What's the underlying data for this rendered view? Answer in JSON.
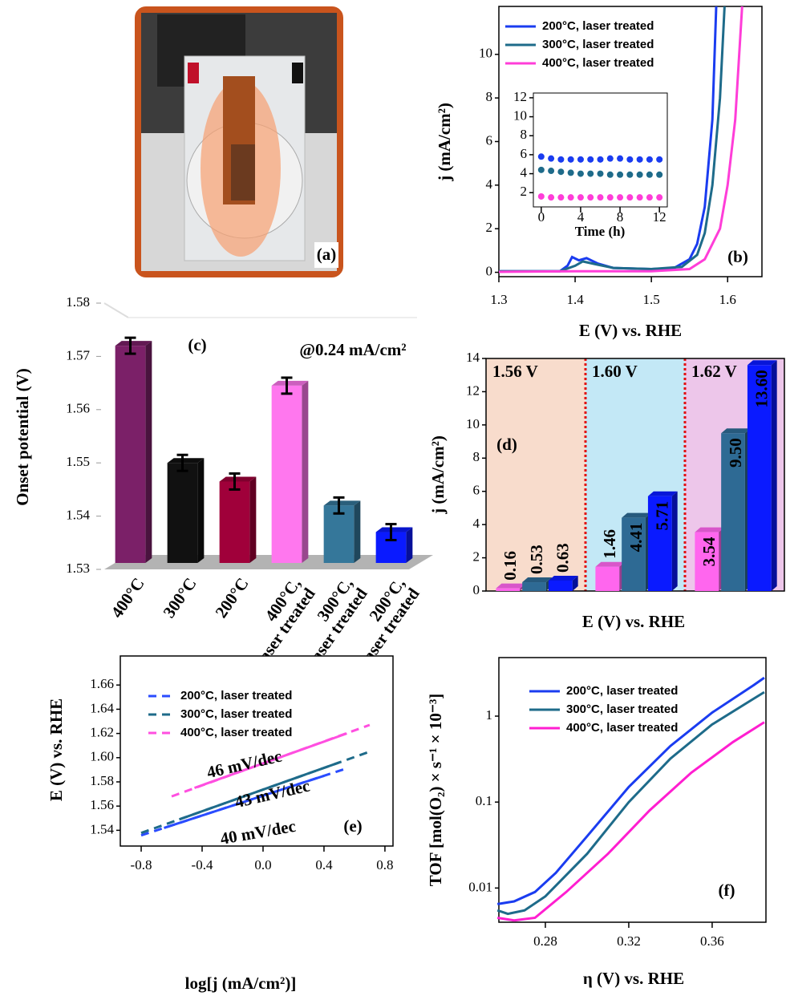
{
  "chart_data": [
    {
      "type": "photo",
      "panel_label": "(a)"
    },
    {
      "type": "line",
      "panel_label": "(b)",
      "xlabel": "E (V) vs. RHE",
      "ylabel": "j (mA/cm²)",
      "xlim": [
        1.3,
        1.645
      ],
      "xticks": [
        1.3,
        1.4,
        1.5,
        1.6
      ],
      "ylim": [
        -0.2,
        12.2
      ],
      "yticks": [
        0,
        2,
        4,
        6,
        8,
        10
      ],
      "legend": "upper left",
      "series": [
        {
          "name": "200°C, laser treated",
          "color": "#1a3cf0",
          "x": [
            1.3,
            1.38,
            1.39,
            1.396,
            1.405,
            1.415,
            1.43,
            1.45,
            1.5,
            1.53,
            1.55,
            1.56,
            1.57,
            1.58,
            1.585
          ],
          "values": [
            0.05,
            0.05,
            0.3,
            0.7,
            0.55,
            0.65,
            0.4,
            0.2,
            0.15,
            0.2,
            0.6,
            1.3,
            3,
            7,
            12.2
          ]
        },
        {
          "name": "300°C, laser treated",
          "color": "#1e6b8a",
          "x": [
            1.3,
            1.38,
            1.4,
            1.41,
            1.43,
            1.45,
            1.5,
            1.54,
            1.56,
            1.57,
            1.58,
            1.59,
            1.596
          ],
          "values": [
            0.05,
            0.05,
            0.3,
            0.5,
            0.35,
            0.2,
            0.15,
            0.25,
            0.8,
            1.8,
            4,
            8,
            12.2
          ]
        },
        {
          "name": "400°C, laser treated",
          "color": "#ff3dd8",
          "x": [
            1.3,
            1.4,
            1.45,
            1.5,
            1.55,
            1.57,
            1.59,
            1.6,
            1.61,
            1.619
          ],
          "values": [
            0.02,
            0.05,
            0.05,
            0.05,
            0.15,
            0.6,
            2,
            4,
            7,
            12.2
          ]
        }
      ],
      "inset": {
        "type": "scatter",
        "xlabel": "Time (h)",
        "xlim": [
          -0.8,
          12.8
        ],
        "xticks": [
          0,
          4,
          8,
          12
        ],
        "ylim": [
          0.5,
          12.5
        ],
        "yticks": [
          2,
          4,
          6,
          8,
          10,
          12
        ],
        "series": [
          {
            "color": "#1a3cf0",
            "x": [
              0,
              1,
              2,
              3,
              4,
              5,
              6,
              7,
              8,
              9,
              10,
              11,
              12
            ],
            "values": [
              5.8,
              5.6,
              5.5,
              5.5,
              5.5,
              5.5,
              5.5,
              5.6,
              5.6,
              5.5,
              5.5,
              5.5,
              5.5
            ]
          },
          {
            "color": "#1e6b8a",
            "x": [
              0,
              1,
              2,
              3,
              4,
              5,
              6,
              7,
              8,
              9,
              10,
              11,
              12
            ],
            "values": [
              4.4,
              4.3,
              4.2,
              4.1,
              4.0,
              4.0,
              4.0,
              3.9,
              3.9,
              3.9,
              3.9,
              3.9,
              3.9
            ]
          },
          {
            "color": "#ff3dd8",
            "x": [
              0,
              1,
              2,
              3,
              4,
              5,
              6,
              7,
              8,
              9,
              10,
              11,
              12
            ],
            "values": [
              1.6,
              1.5,
              1.5,
              1.5,
              1.5,
              1.5,
              1.5,
              1.5,
              1.5,
              1.5,
              1.5,
              1.5,
              1.5
            ]
          }
        ]
      }
    },
    {
      "type": "bar",
      "panel_label": "(c)",
      "ylabel": "Onset potential (V)",
      "annotations": [
        "@0.24 mA/cm²"
      ],
      "categories": [
        [
          "400°C"
        ],
        [
          "300°C"
        ],
        [
          "200°C"
        ],
        [
          "400°C,",
          "laser treated"
        ],
        [
          "300°C,",
          "laser treated"
        ],
        [
          "200°C,",
          "laser treated"
        ]
      ],
      "values": [
        1.572,
        1.55,
        1.5465,
        1.5645,
        1.542,
        1.537
      ],
      "errors": [
        0.0015,
        0.0015,
        0.0015,
        0.0015,
        0.0015,
        0.0015
      ],
      "colors": [
        "#7b2068",
        "#111111",
        "#a0003a",
        "#ff77ee",
        "#35779a",
        "#0a1aff"
      ],
      "ylim": [
        1.53,
        1.58
      ],
      "yticks": [
        1.53,
        1.54,
        1.55,
        1.56,
        1.57,
        1.58
      ]
    },
    {
      "type": "bar",
      "panel_label": "(d)",
      "xlabel": "E (V) vs. RHE",
      "ylabel": "j (mA/cm²)",
      "categories": [
        "1.56 V",
        "1.60 V",
        "1.62 V"
      ],
      "category_colors": [
        "#b01010",
        "#1d5a7a",
        "#d21ec0"
      ],
      "region_colors": [
        "#f8dccc",
        "#c3e8f6",
        "#edc6ea"
      ],
      "separator_color": "#e01010",
      "ylim": [
        0,
        14
      ],
      "yticks": [
        0,
        2,
        4,
        6,
        8,
        10,
        12,
        14
      ],
      "series": [
        {
          "color": "#ff66ee",
          "values": [
            0.16,
            1.46,
            3.54
          ],
          "value_labels": [
            "0.16",
            "1.46",
            "3.54"
          ]
        },
        {
          "color": "#2e6a94",
          "values": [
            0.53,
            4.41,
            9.5
          ],
          "value_labels": [
            "0.53",
            "4.41",
            "9.50"
          ]
        },
        {
          "color": "#0a1aff",
          "values": [
            0.63,
            5.71,
            13.6
          ],
          "value_labels": [
            "0.63",
            "5.71",
            "13.60"
          ]
        }
      ]
    },
    {
      "type": "line",
      "panel_label": "(e)",
      "xlabel": "log[j (mA/cm²)]",
      "ylabel": "E (V) vs. RHE",
      "xlim": [
        -0.937,
        0.853
      ],
      "xticks": [
        -0.8,
        -0.4,
        {
          "value": 0,
          "label": "0.0"
        },
        0.4,
        0.8
      ],
      "ylim": [
        1.527,
        1.684
      ],
      "yticks": [
        {
          "value": 1.54,
          "label": "1.54"
        },
        {
          "value": 1.56,
          "label": "1.56"
        },
        {
          "value": 1.58,
          "label": "1.58"
        },
        {
          "value": 1.6,
          "label": "1.60"
        },
        {
          "value": 1.62,
          "label": "1.62"
        },
        {
          "value": 1.64,
          "label": "1.64"
        },
        {
          "value": 1.66,
          "label": "1.66"
        }
      ],
      "legend": "upper left",
      "annotations": [
        "46 mV/dec",
        "43 mV/dec",
        "40 mV/dec"
      ],
      "annotation_colors": [
        "#ff3dd8",
        "#1e6b8a",
        "#1a3cf0"
      ],
      "series": [
        {
          "name": "200°C, laser treated",
          "color": "#2a4cff",
          "x": [
            -0.65,
            0.4
          ],
          "values": [
            1.542,
            1.585
          ],
          "fit_x": [
            -0.8,
            0.55
          ],
          "fit_values": [
            1.5358,
            1.5912
          ]
        },
        {
          "name": "300°C, laser treated",
          "color": "#1e6b8a",
          "x": [
            -0.55,
            0.5
          ],
          "values": [
            1.549,
            1.596
          ],
          "fit_x": [
            -0.8,
            0.7
          ],
          "fit_values": [
            1.5378,
            1.605
          ]
        },
        {
          "name": "400°C, laser treated",
          "color": "#ff4fe0",
          "x": [
            -0.45,
            0.55
          ],
          "values": [
            1.575,
            1.62
          ],
          "fit_x": [
            -0.6,
            0.7
          ],
          "fit_values": [
            1.568,
            1.627
          ]
        }
      ]
    },
    {
      "type": "line",
      "panel_label": "(f)",
      "xlabel": "η (V) vs. RHE",
      "ylabel": "TOF [mol(O₂) × s⁻¹ × 10⁻³]",
      "log_y": true,
      "xlim": [
        0.2577,
        0.3858
      ],
      "xticks": [
        0.28,
        0.32,
        0.36
      ],
      "ylim": [
        0.004,
        4.8
      ],
      "yticks": [
        0.01,
        0.1,
        1
      ],
      "legend": "upper left",
      "series": [
        {
          "name": "200°C, laser treated",
          "color": "#1a3cf0",
          "x": [
            0.257,
            0.265,
            0.275,
            0.285,
            0.3,
            0.32,
            0.34,
            0.36,
            0.38,
            0.385
          ],
          "values": [
            0.0065,
            0.007,
            0.009,
            0.015,
            0.04,
            0.15,
            0.45,
            1.1,
            2.3,
            2.8
          ]
        },
        {
          "name": "300°C, laser treated",
          "color": "#1e6b8a",
          "x": [
            0.257,
            0.262,
            0.27,
            0.28,
            0.3,
            0.32,
            0.34,
            0.36,
            0.38,
            0.385
          ],
          "values": [
            0.0055,
            0.005,
            0.0055,
            0.008,
            0.025,
            0.1,
            0.32,
            0.8,
            1.6,
            1.9
          ]
        },
        {
          "name": "400°C, laser treated",
          "color": "#ff1ed0",
          "x": [
            0.257,
            0.265,
            0.275,
            0.29,
            0.31,
            0.33,
            0.35,
            0.37,
            0.385
          ],
          "values": [
            0.0045,
            0.0042,
            0.0045,
            0.009,
            0.025,
            0.08,
            0.22,
            0.5,
            0.85
          ]
        }
      ]
    }
  ]
}
